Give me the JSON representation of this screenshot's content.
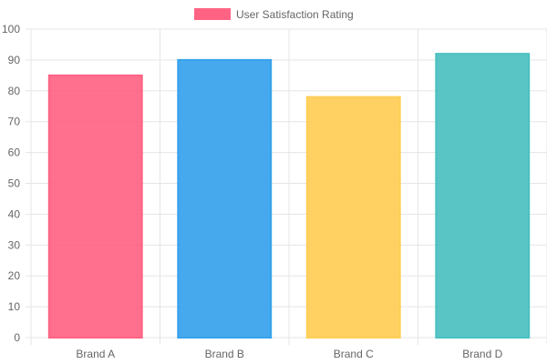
{
  "chart_data": {
    "type": "bar",
    "categories": [
      "Brand A",
      "Brand B",
      "Brand C",
      "Brand D"
    ],
    "series": [
      {
        "name": "User Satisfaction Rating",
        "values": [
          85,
          90,
          78,
          92
        ]
      }
    ],
    "ylim": [
      0,
      100
    ],
    "yticks": [
      0,
      10,
      20,
      30,
      40,
      50,
      60,
      70,
      80,
      90,
      100
    ],
    "grid": true,
    "legend_position": "top",
    "colors": [
      "#ff6384",
      "#36a2eb",
      "#ffcd56",
      "#4bc0c0"
    ],
    "legend_color": "#ff6384",
    "axis_text_color": "#666666",
    "grid_color": "#e5e5e5"
  }
}
